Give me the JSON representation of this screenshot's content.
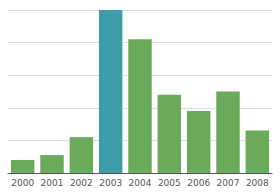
{
  "chart_data": {
    "type": "bar",
    "categories": [
      "2000",
      "2001",
      "2002",
      "2003",
      "2004",
      "2005",
      "2006",
      "2007",
      "2008"
    ],
    "values": [
      8,
      11,
      22,
      100,
      82,
      48,
      38,
      50,
      26
    ],
    "colors": [
      "#6aaa5a",
      "#6aaa5a",
      "#6aaa5a",
      "#3d9da8",
      "#6aaa5a",
      "#6aaa5a",
      "#6aaa5a",
      "#6aaa5a",
      "#6aaa5a"
    ],
    "ylim": [
      0,
      100
    ],
    "yticks": [
      20,
      40,
      60,
      80,
      100
    ],
    "grid": true,
    "tick_labels": "x"
  }
}
